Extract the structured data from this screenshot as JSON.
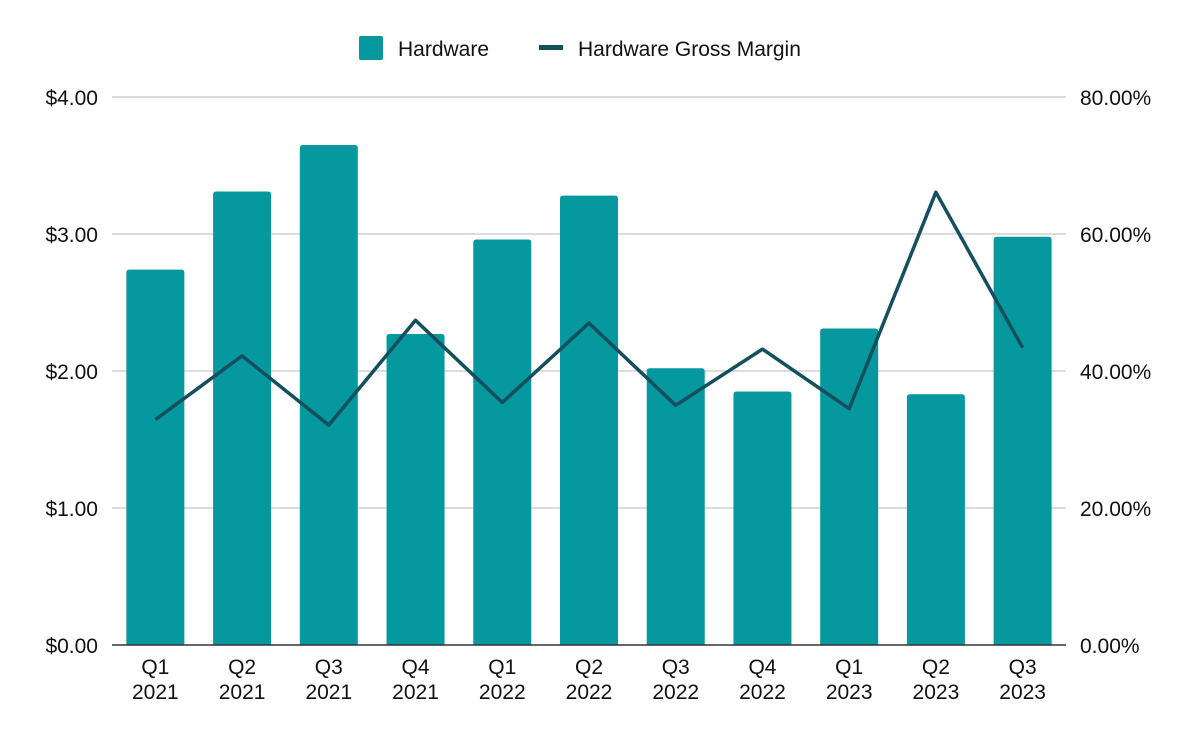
{
  "chart_data": {
    "type": "bar",
    "categories": [
      [
        "Q1",
        "2021"
      ],
      [
        "Q2",
        "2021"
      ],
      [
        "Q3",
        "2021"
      ],
      [
        "Q4",
        "2021"
      ],
      [
        "Q1",
        "2022"
      ],
      [
        "Q2",
        "2022"
      ],
      [
        "Q3",
        "2022"
      ],
      [
        "Q4",
        "2022"
      ],
      [
        "Q1",
        "2023"
      ],
      [
        "Q2",
        "2023"
      ],
      [
        "Q3",
        "2023"
      ]
    ],
    "series": [
      {
        "name": "Hardware",
        "kind": "bar",
        "axis": "left",
        "color": "#05989E",
        "values": [
          2.74,
          3.31,
          3.65,
          2.27,
          2.96,
          3.28,
          2.02,
          1.85,
          2.31,
          1.83,
          2.98
        ]
      },
      {
        "name": "Hardware Gross Margin",
        "kind": "line",
        "axis": "right",
        "color": "#134F5C",
        "values": [
          0.329,
          0.422,
          0.321,
          0.474,
          0.354,
          0.47,
          0.35,
          0.432,
          0.345,
          0.661,
          0.434
        ]
      }
    ],
    "y_left": {
      "range": [
        0,
        4
      ],
      "ticks": [
        "$0.00",
        "$1.00",
        "$2.00",
        "$3.00",
        "$4.00"
      ]
    },
    "y_right": {
      "range": [
        0,
        0.8
      ],
      "ticks": [
        "0.00%",
        "20.00%",
        "40.00%",
        "60.00%",
        "80.00%"
      ]
    },
    "title": "",
    "xlabel": "",
    "ylabel": "",
    "grid": true,
    "legend": "top-center"
  }
}
